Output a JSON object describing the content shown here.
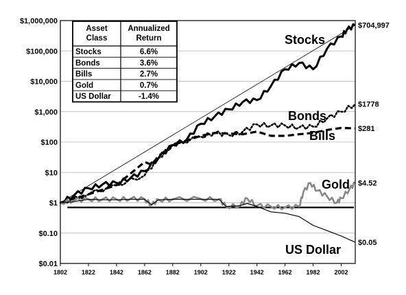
{
  "chart_data": {
    "type": "line",
    "yscale": "log",
    "ylim": [
      0.01,
      1000000
    ],
    "xlim": [
      1802,
      2012
    ],
    "x_ticks": [
      "1802",
      "1822",
      "1842",
      "1862",
      "1882",
      "1902",
      "1922",
      "1942",
      "1962",
      "1982",
      "2002"
    ],
    "y_ticks": [
      "$0.01",
      "$0.10",
      "$1",
      "$10",
      "$100",
      "$1,000",
      "$10,000",
      "$100,000",
      "$1,000,000"
    ],
    "grid": "horizontal",
    "reference_line_y": 0.7,
    "table": {
      "headers": [
        "Asset Class",
        "Annualized Return"
      ],
      "rows": [
        [
          "Stocks",
          "6.6%"
        ],
        [
          "Bonds",
          "3.6%"
        ],
        [
          "Bills",
          "2.7%"
        ],
        [
          "Gold",
          "0.7%"
        ],
        [
          "US Dollar",
          "-1.4%"
        ]
      ]
    },
    "series": [
      {
        "name": "Stocks",
        "end_label": "$704,997",
        "style": "solid-thick",
        "color": "#000000",
        "x": [
          1802,
          1812,
          1822,
          1832,
          1842,
          1852,
          1862,
          1872,
          1882,
          1892,
          1902,
          1912,
          1922,
          1932,
          1942,
          1952,
          1962,
          1972,
          1982,
          1992,
          2002,
          2006,
          2012
        ],
        "values": [
          1,
          1.8,
          3,
          4,
          4.5,
          6.5,
          11,
          30,
          80,
          120,
          400,
          700,
          1200,
          2100,
          2400,
          7000,
          25000,
          40000,
          25000,
          120000,
          300000,
          500000,
          704997
        ]
      },
      {
        "name": "",
        "end_label": "",
        "style": "trend",
        "color": "#000000",
        "x": [
          1802,
          2012
        ],
        "values": [
          1,
          704997
        ]
      },
      {
        "name": "Bonds",
        "end_label": "$1778",
        "style": "dotted",
        "color": "#000000",
        "x": [
          1802,
          1822,
          1842,
          1862,
          1872,
          1882,
          1902,
          1912,
          1922,
          1932,
          1942,
          1952,
          1962,
          1972,
          1982,
          1992,
          2002,
          2012
        ],
        "values": [
          1,
          1.9,
          3.8,
          8,
          30,
          80,
          150,
          200,
          170,
          220,
          380,
          350,
          350,
          300,
          320,
          600,
          1000,
          1778
        ]
      },
      {
        "name": "Bills",
        "end_label": "$281",
        "style": "dashed",
        "color": "#000000",
        "x": [
          1802,
          1822,
          1842,
          1862,
          1867,
          1872,
          1882,
          1902,
          1912,
          1922,
          1932,
          1942,
          1952,
          1962,
          1972,
          1982,
          1992,
          2002,
          2012
        ],
        "values": [
          1,
          1.9,
          3.8,
          22,
          18,
          35,
          80,
          160,
          200,
          190,
          180,
          220,
          160,
          160,
          180,
          200,
          250,
          290,
          281
        ]
      },
      {
        "name": "Gold",
        "end_label": "$4.52",
        "style": "solid",
        "color": "#888888",
        "x": [
          1802,
          1812,
          1822,
          1832,
          1842,
          1852,
          1862,
          1867,
          1872,
          1882,
          1902,
          1915,
          1920,
          1930,
          1935,
          1942,
          1952,
          1962,
          1972,
          1975,
          1980,
          1985,
          1992,
          1999,
          2002,
          2008,
          2012
        ],
        "values": [
          1,
          1.2,
          1.3,
          1.3,
          1.3,
          1.35,
          1.3,
          0.85,
          1.25,
          1.3,
          1.35,
          1.3,
          0.75,
          0.8,
          1.4,
          0.8,
          0.75,
          0.7,
          0.75,
          2.2,
          4.5,
          2.5,
          1.6,
          1.0,
          1.4,
          2.8,
          4.52
        ]
      },
      {
        "name": "US Dollar",
        "end_label": "$0.05",
        "style": "solid-thin",
        "color": "#000000",
        "x": [
          1802,
          1812,
          1822,
          1832,
          1842,
          1852,
          1862,
          1867,
          1872,
          1882,
          1902,
          1915,
          1920,
          1930,
          1935,
          1942,
          1952,
          1962,
          1972,
          1982,
          1992,
          2002,
          2012
        ],
        "values": [
          1,
          1.1,
          1.3,
          1.25,
          1.25,
          1.3,
          1.3,
          0.85,
          1.25,
          1.3,
          1.3,
          1.3,
          0.75,
          0.8,
          0.95,
          0.75,
          0.5,
          0.45,
          0.35,
          0.18,
          0.12,
          0.08,
          0.05
        ]
      }
    ]
  }
}
